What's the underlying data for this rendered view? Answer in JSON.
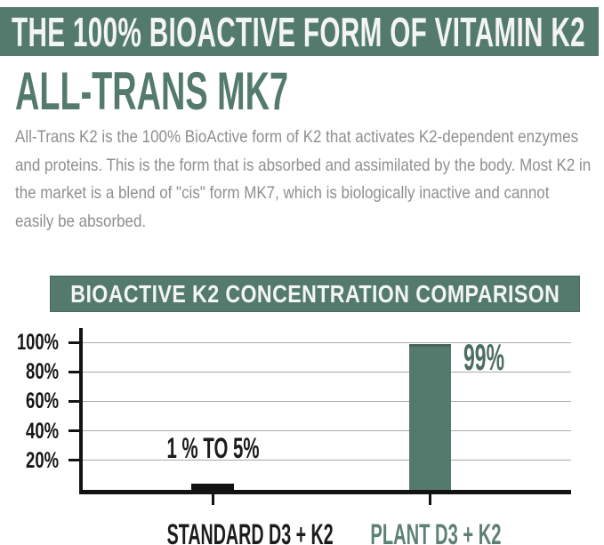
{
  "page": {
    "banner_title": "THE 100% BIOACTIVE FORM OF VITAMIN K2",
    "heading": "ALL-TRANS MK7",
    "paragraph": "All-Trans K2 is the 100% BioActive form of K2 that activates K2-dependent enzymes and proteins. This is the form that is absorbed and assimilated by the body. Most K2 in the market is a blend of \"cis\" form MK7, which is biologically inactive and cannot easily be absorbed."
  },
  "colors": {
    "brand_green": "#547a6e",
    "banner_text": "#f3f5f3",
    "body_text_gray": "#8f8f8f",
    "axis_black": "#131313",
    "gridline_gray": "#a9a9a9"
  },
  "chart_data": {
    "type": "bar",
    "title": "BIOACTIVE K2 CONCENTRATION COMPARISON",
    "categories": [
      "STANDARD D3 + K2",
      "PLANT D3 + K2"
    ],
    "values": [
      4,
      99
    ],
    "value_labels": [
      "1 % TO 5%",
      "99%"
    ],
    "label_positions": [
      "above",
      "right-of-top"
    ],
    "bar_colors": [
      "#111111",
      "#547a6e"
    ],
    "category_colors": [
      "#1c1c1c",
      "#5d8074"
    ],
    "value_label_colors": [
      "#1c1c1c",
      "#4c6e62"
    ],
    "yticks": [
      100,
      80,
      60,
      40,
      20
    ],
    "ytick_labels": [
      "100%",
      "80%",
      "60%",
      "40%",
      "20%"
    ],
    "ylim": [
      0,
      110
    ],
    "grid": true,
    "legend": false,
    "xlabel": "",
    "ylabel": ""
  }
}
